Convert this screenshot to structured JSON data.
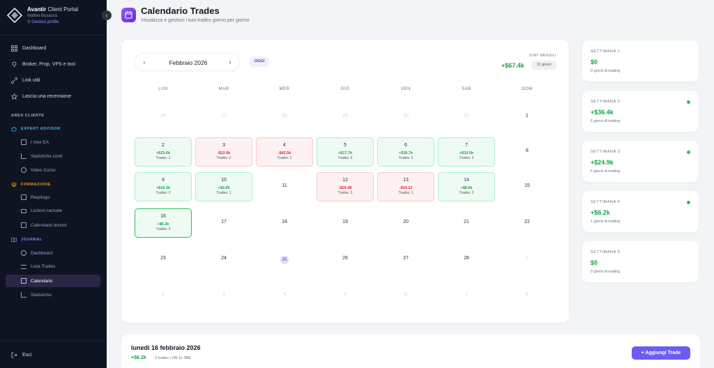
{
  "sidebar": {
    "brand_bold": "Avantir",
    "brand_rest": " Client Portal",
    "user": "Matteo Busacca",
    "profile_link": "Gestisci profilo",
    "collapse": "‹",
    "items": [
      {
        "label": "Dashboard",
        "icon": "grid-icon"
      },
      {
        "label": "Broker, Prop, VPS e tool",
        "icon": "lightbulb-icon"
      },
      {
        "label": "Link utili",
        "icon": "link-icon"
      },
      {
        "label": "Lascia una recensione",
        "icon": "star-icon"
      }
    ],
    "section_label": "AREA CLIENTE",
    "groups": [
      {
        "label": "EXPERT ADVISOR",
        "color": "#38bdf8",
        "items": [
          "I miei EA",
          "Statistiche conti",
          "Video Corso"
        ]
      },
      {
        "label": "FORMAZIONE",
        "color": "#f59e0b",
        "items": [
          "Riepilogo",
          "Lezioni caricate",
          "Calendario lezioni"
        ]
      },
      {
        "label": "JOURNAL",
        "color": "#818cf8",
        "items": [
          "Dashboard",
          "Lista Trades",
          "Calendario",
          "Statistiche"
        ]
      }
    ],
    "logout": "Esci"
  },
  "header": {
    "title": "Calendario Trades",
    "subtitle": "Visualizza e gestisci i tuoi trades giorno per giorno"
  },
  "calendar": {
    "prev": "‹",
    "next": "›",
    "month": "Febbraio 2026",
    "today_button": "OGGI",
    "stats_label": "STAT MENSILI",
    "stats_value": "+$67.4k",
    "stats_days": "12 giorni",
    "weekdays": [
      "LUN",
      "MAR",
      "MER",
      "GIO",
      "VEN",
      "SAB",
      "DOM"
    ],
    "weeks": [
      [
        {
          "d": "26",
          "t": "muted"
        },
        {
          "d": "27",
          "t": "muted"
        },
        {
          "d": "28",
          "t": "muted"
        },
        {
          "d": "29",
          "t": "muted"
        },
        {
          "d": "30",
          "t": "muted"
        },
        {
          "d": "31",
          "t": "muted"
        },
        {
          "d": "1",
          "t": "plain"
        }
      ],
      [
        {
          "d": "2",
          "t": "win",
          "pl": "+$23.6k",
          "tr": "Trades: 1"
        },
        {
          "d": "3",
          "t": "loss",
          "pl": "-$12.6k",
          "tr": "Trades: 2"
        },
        {
          "d": "4",
          "t": "loss",
          "pl": "-$42.5k",
          "tr": "Trades: 1"
        },
        {
          "d": "5",
          "t": "win",
          "pl": "+$17.7k",
          "tr": "Trades: 3"
        },
        {
          "d": "6",
          "t": "win",
          "pl": "+$30.7k",
          "tr": "Trades: 2"
        },
        {
          "d": "7",
          "t": "win",
          "pl": "+$10.5k",
          "tr": "Trades: 2"
        },
        {
          "d": "8",
          "t": "plain"
        }
      ],
      [
        {
          "d": "9",
          "t": "win",
          "pl": "+$16.3k",
          "tr": "Trades: 2"
        },
        {
          "d": "10",
          "t": "win",
          "pl": "+$3.69",
          "tr": "Trades: 1"
        },
        {
          "d": "11",
          "t": "plain"
        },
        {
          "d": "12",
          "t": "loss",
          "pl": "-$29.48",
          "tr": "Trades: 3"
        },
        {
          "d": "13",
          "t": "loss",
          "pl": "-$34.12",
          "tr": "Trades: 1"
        },
        {
          "d": "14",
          "t": "win",
          "pl": "+$8.6k",
          "tr": "Trades: 2"
        },
        {
          "d": "15",
          "t": "plain"
        }
      ],
      [
        {
          "d": "16",
          "t": "sel",
          "pl": "+$6.2k",
          "tr": "Trades: 3"
        },
        {
          "d": "17",
          "t": "plain"
        },
        {
          "d": "18",
          "t": "plain"
        },
        {
          "d": "19",
          "t": "plain"
        },
        {
          "d": "20",
          "t": "plain"
        },
        {
          "d": "21",
          "t": "plain"
        },
        {
          "d": "22",
          "t": "plain"
        }
      ],
      [
        {
          "d": "23",
          "t": "plain"
        },
        {
          "d": "24",
          "t": "plain"
        },
        {
          "d": "25",
          "t": "today"
        },
        {
          "d": "26",
          "t": "plain"
        },
        {
          "d": "27",
          "t": "plain"
        },
        {
          "d": "28",
          "t": "plain"
        },
        {
          "d": "1",
          "t": "muted"
        }
      ],
      [
        {
          "d": "2",
          "t": "muted"
        },
        {
          "d": "3",
          "t": "muted"
        },
        {
          "d": "4",
          "t": "muted"
        },
        {
          "d": "5",
          "t": "muted"
        },
        {
          "d": "6",
          "t": "muted"
        },
        {
          "d": "7",
          "t": "muted"
        },
        {
          "d": "8",
          "t": "muted"
        }
      ]
    ]
  },
  "weeks_summary": [
    {
      "label": "SETTIMANA 1",
      "value": "$0",
      "days": "0 giorni di trading",
      "dot": false
    },
    {
      "label": "SETTIMANA 2",
      "value": "+$36.4k",
      "days": "6 giorni di trading",
      "dot": true
    },
    {
      "label": "SETTIMANA 3",
      "value": "+$24.9k",
      "days": "5 giorni di trading",
      "dot": true
    },
    {
      "label": "SETTIMANA 4",
      "value": "+$6.2k",
      "days": "1 giorni di trading",
      "dot": true
    },
    {
      "label": "SETTIMANA 5",
      "value": "$0",
      "days": "0 giorni di trading",
      "dot": false
    }
  ],
  "detail": {
    "title": "lunedì 16 febbraio 2026",
    "pl": "+$6.2k",
    "sub": "3 trades | 2W 1L 0BE",
    "add_button": "+ Aggiungi Trade"
  }
}
